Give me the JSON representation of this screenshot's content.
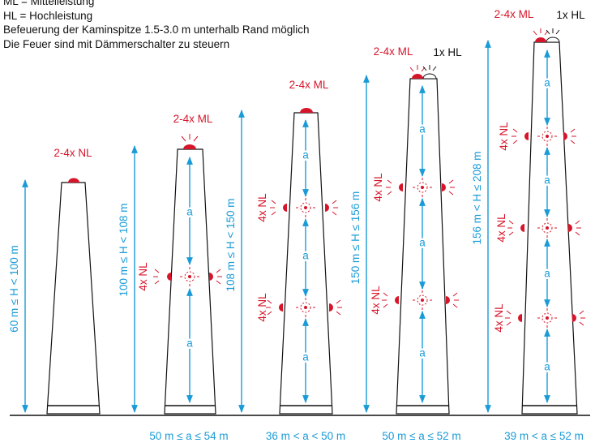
{
  "legend": {
    "ml": "ML = Mittelleistung",
    "hl": "HL = Hochleistung",
    "note1": "Befeuerung der Kaminspitze 1.5-3.0 m unterhalb Rand möglich",
    "note2": "Die Feuer sind mit Dämmerschalter zu steuern"
  },
  "colors": {
    "blue": "#1a9bd7",
    "red": "#d7152a",
    "outline": "#111111"
  },
  "chimneys": [
    {
      "height_label": "60 m ≤ H < 100 m",
      "top_label": "2-4x NL"
    },
    {
      "height_label": "100 m ≤ H < 108 m",
      "top_label": "2-4x ML",
      "side_label": "4x NL",
      "spacing_label": "a",
      "range_label": "50 m ≤ a ≤  54 m"
    },
    {
      "height_label": "108 m ≤ H < 150 m",
      "top_label": "2-4x ML",
      "side_label": "4x NL",
      "spacing_label": "a",
      "range_label": "36 m < a < 50 m"
    },
    {
      "height_label": "150 m ≤ H ≤  156 m",
      "top_label": "2-4x ML",
      "hl_label": "1x HL",
      "side_label": "4x NL",
      "spacing_label": "a",
      "range_label": "50 m ≤ a ≤  52 m"
    },
    {
      "height_label": "156 m < H ≤ 208 m",
      "top_label": "2-4x ML",
      "hl_label": "1x HL",
      "side_label": "4x NL",
      "spacing_label": "a",
      "range_label": "39 m < a ≤ 52 m"
    }
  ]
}
